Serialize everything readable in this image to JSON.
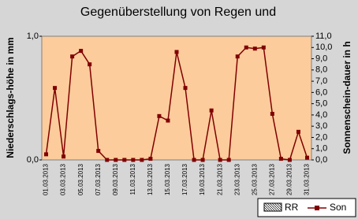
{
  "chart_data": {
    "type": "line",
    "title": "Gegenüberstellung von Regen und",
    "y_label": "Niederschlags-höhe in mm",
    "y2_label": "Sonnenschein-dauer in h",
    "categories": [
      "01.03.2013",
      null,
      "03.03.2013",
      null,
      "05.03.2013",
      null,
      "07.03.2013",
      null,
      "09.03.2013",
      null,
      "11.03.2013",
      null,
      "13.03.2013",
      null,
      "15.03.2013",
      null,
      "17.03.2013",
      null,
      "19.03.2013",
      null,
      "21.03.2013",
      null,
      "23.03.2013",
      null,
      "25.03.2013",
      null,
      "27.03.2013",
      null,
      "29.03.2013",
      null,
      "31.03.2013"
    ],
    "series": [
      {
        "name": "RR",
        "color": "#9999ff",
        "values": [
          0,
          0,
          0,
          0,
          0,
          0,
          0,
          0,
          0,
          0,
          0,
          0,
          0,
          0,
          0,
          0,
          0,
          0,
          0,
          0,
          0,
          0,
          0,
          0,
          0,
          0,
          0,
          0,
          0,
          0,
          0
        ]
      },
      {
        "name": "Son",
        "color": "#800000",
        "axis": "y2",
        "values": [
          0.5,
          6.4,
          0.3,
          9.2,
          9.7,
          8.5,
          0.8,
          0,
          0,
          0,
          0,
          0,
          0.1,
          3.9,
          3.5,
          9.6,
          6.4,
          0,
          0,
          4.4,
          0,
          0,
          9.2,
          10.0,
          9.9,
          10.0,
          4.1,
          0.1,
          0,
          2.5,
          0.2
        ]
      }
    ],
    "ylim": [
      0,
      1
    ],
    "yticks": [
      {
        "value": 0,
        "label": "0,0"
      },
      {
        "value": 1,
        "label": "1,0"
      }
    ],
    "y2lim": [
      0,
      11
    ],
    "y2ticks": [
      {
        "value": 0,
        "label": "0,0"
      },
      {
        "value": 1,
        "label": "1,0"
      },
      {
        "value": 2,
        "label": "2,0"
      },
      {
        "value": 3,
        "label": "3,0"
      },
      {
        "value": 4,
        "label": "4,0"
      },
      {
        "value": 5,
        "label": "5,0"
      },
      {
        "value": 6,
        "label": "6,0"
      },
      {
        "value": 7,
        "label": "7,0"
      },
      {
        "value": 8,
        "label": "8,0"
      },
      {
        "value": 9,
        "label": "9,0"
      },
      {
        "value": 10,
        "label": "10,0"
      },
      {
        "value": 11,
        "label": "11,0"
      }
    ],
    "plot_background": "#fccc9c"
  }
}
